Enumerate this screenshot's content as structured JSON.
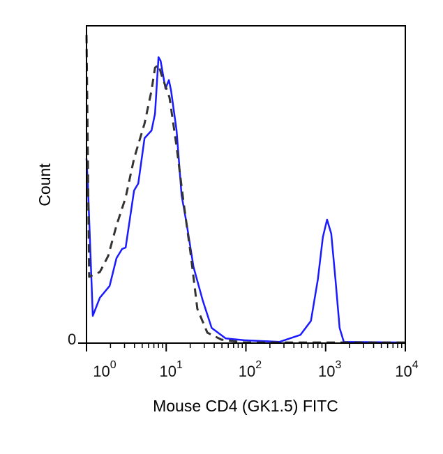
{
  "chart_data": {
    "type": "line",
    "title": "",
    "xlabel": "Mouse CD4 (GK1.5) FITC",
    "ylabel": "Count",
    "xscale": "log",
    "xlim": [
      1,
      10000
    ],
    "ylim": [
      0,
      100
    ],
    "x_ticks": [
      {
        "base": "10",
        "exp": "0",
        "value": 1
      },
      {
        "base": "10",
        "exp": "1",
        "value": 10
      },
      {
        "base": "10",
        "exp": "2",
        "value": 100
      },
      {
        "base": "10",
        "exp": "3",
        "value": 1000
      },
      {
        "base": "10",
        "exp": "4",
        "value": 10000
      }
    ],
    "y_ticks": [
      {
        "label": "0",
        "value": 0
      }
    ],
    "grid": false,
    "series": [
      {
        "style": "solid",
        "color": "#1a1aff",
        "x": [
          1,
          1.04,
          1.2,
          1.47,
          1.95,
          2.38,
          2.8,
          3.1,
          3.95,
          4.46,
          5.35,
          6.54,
          7.24,
          8.01,
          8.51,
          9.8,
          10.8,
          11.5,
          13.5,
          15.6,
          18.0,
          22.0,
          28.6,
          37.2,
          55.7,
          96,
          264,
          483,
          654,
          801,
          923,
          1042,
          1175,
          1327,
          1497,
          1690,
          10000
        ],
        "y": [
          58.2,
          50.3,
          8.6,
          14.3,
          18.0,
          26.8,
          29.7,
          30.1,
          48.1,
          50.3,
          64.6,
          67.0,
          72.3,
          90.1,
          89.0,
          80.2,
          82.9,
          79.6,
          67.0,
          46.6,
          37.8,
          24.0,
          13.6,
          4.8,
          1.5,
          0.9,
          0.4,
          2.6,
          7.0,
          20.2,
          33.4,
          38.9,
          34.5,
          20.2,
          4.8,
          0.4,
          0.2
        ]
      },
      {
        "style": "dashed",
        "color": "#333333",
        "x": [
          1,
          1.08,
          1.47,
          1.87,
          2.38,
          3.1,
          3.95,
          5.35,
          6.54,
          7.24,
          8.01,
          8.87,
          11.0,
          13.5,
          16.5,
          20.2,
          24.6,
          32.8,
          49.3,
          96,
          10000
        ],
        "y": [
          97.1,
          20.9,
          22.4,
          27.5,
          37.1,
          45.9,
          58.2,
          69.2,
          79.6,
          86.8,
          87.7,
          84.0,
          77.4,
          62.0,
          44.4,
          28.4,
          10.8,
          3.3,
          1.1,
          0.2,
          0.2
        ]
      }
    ]
  }
}
